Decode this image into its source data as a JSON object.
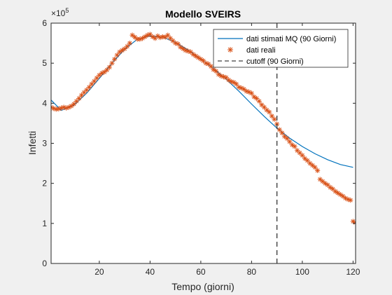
{
  "chart_data": {
    "type": "line",
    "title": "Modello SVEIRS",
    "xlabel": "Tempo (giorni)",
    "ylabel": "Infetti",
    "y_exponent_label": "×10",
    "y_exponent": "5",
    "xlim": [
      1,
      121
    ],
    "ylim": [
      0,
      600000
    ],
    "xticks": [
      20,
      40,
      60,
      80,
      100,
      120
    ],
    "yticks": [
      0,
      100000,
      200000,
      300000,
      400000,
      500000,
      600000
    ],
    "ytick_labels": [
      "0",
      "1",
      "2",
      "3",
      "4",
      "5",
      "6"
    ],
    "grid": false,
    "legend_position": "top-right",
    "cutoff_x": 90,
    "series": [
      {
        "name": "dati stimati MQ (90 Giorni)",
        "style": "line",
        "color": "#0072BD",
        "x": [
          1,
          5,
          10,
          15,
          20,
          25,
          30,
          35,
          40,
          45,
          50,
          55,
          60,
          65,
          70,
          75,
          80,
          85,
          90,
          95,
          100,
          105,
          110,
          115,
          120
        ],
        "y": [
          408000,
          382000,
          395000,
          425000,
          462000,
          500000,
          535000,
          560000,
          568000,
          565000,
          552000,
          533000,
          510000,
          487000,
          460000,
          430000,
          398000,
          367000,
          338000,
          313000,
          292000,
          274000,
          259000,
          247000,
          240000
        ]
      },
      {
        "name": "dati reali",
        "style": "marker",
        "marker": "*",
        "color": "#D95319",
        "x": [
          1,
          2,
          3,
          4,
          5,
          6,
          7,
          8,
          9,
          10,
          11,
          12,
          13,
          14,
          15,
          16,
          17,
          18,
          19,
          20,
          21,
          22,
          23,
          24,
          25,
          26,
          27,
          28,
          29,
          30,
          31,
          32,
          33,
          34,
          35,
          36,
          37,
          38,
          39,
          40,
          41,
          42,
          43,
          44,
          45,
          46,
          47,
          48,
          49,
          50,
          51,
          52,
          53,
          54,
          55,
          56,
          57,
          58,
          59,
          60,
          61,
          62,
          63,
          64,
          65,
          66,
          67,
          68,
          69,
          70,
          71,
          72,
          73,
          74,
          75,
          76,
          77,
          78,
          79,
          80,
          81,
          82,
          83,
          84,
          85,
          86,
          87,
          88,
          89,
          90,
          91,
          92,
          93,
          94,
          95,
          96,
          97,
          98,
          99,
          100,
          101,
          102,
          103,
          104,
          105,
          106,
          107,
          108,
          109,
          110,
          111,
          112,
          113,
          114,
          115,
          116,
          117,
          118,
          119,
          120,
          121
        ],
        "y": [
          390000,
          387000,
          385000,
          386000,
          388000,
          390000,
          388000,
          390000,
          393000,
          398000,
          405000,
          412000,
          420000,
          427000,
          433000,
          440000,
          448000,
          455000,
          463000,
          470000,
          475000,
          478000,
          483000,
          490000,
          500000,
          510000,
          520000,
          528000,
          532000,
          536000,
          542000,
          550000,
          570000,
          565000,
          560000,
          560000,
          562000,
          566000,
          570000,
          572000,
          566000,
          562000,
          568000,
          564000,
          566000,
          565000,
          570000,
          562000,
          556000,
          550000,
          548000,
          540000,
          536000,
          532000,
          530000,
          528000,
          522000,
          518000,
          514000,
          510000,
          506000,
          500000,
          498000,
          492000,
          484000,
          480000,
          472000,
          468000,
          466000,
          464000,
          458000,
          454000,
          452000,
          448000,
          440000,
          438000,
          435000,
          430000,
          428000,
          425000,
          416000,
          412000,
          405000,
          396000,
          390000,
          383000,
          378000,
          368000,
          360000,
          348000,
          334000,
          326000,
          317000,
          312000,
          304000,
          296000,
          292000,
          282000,
          276000,
          270000,
          262000,
          257000,
          250000,
          245000,
          240000,
          232000,
          210000,
          205000,
          200000,
          196000,
          190000,
          186000,
          180000,
          176000,
          172000,
          168000,
          163000,
          160000,
          158000,
          105000,
          102000
        ]
      },
      {
        "name": "cutoff (90 Giorni)",
        "style": "dashed",
        "color": "#404040"
      }
    ]
  }
}
